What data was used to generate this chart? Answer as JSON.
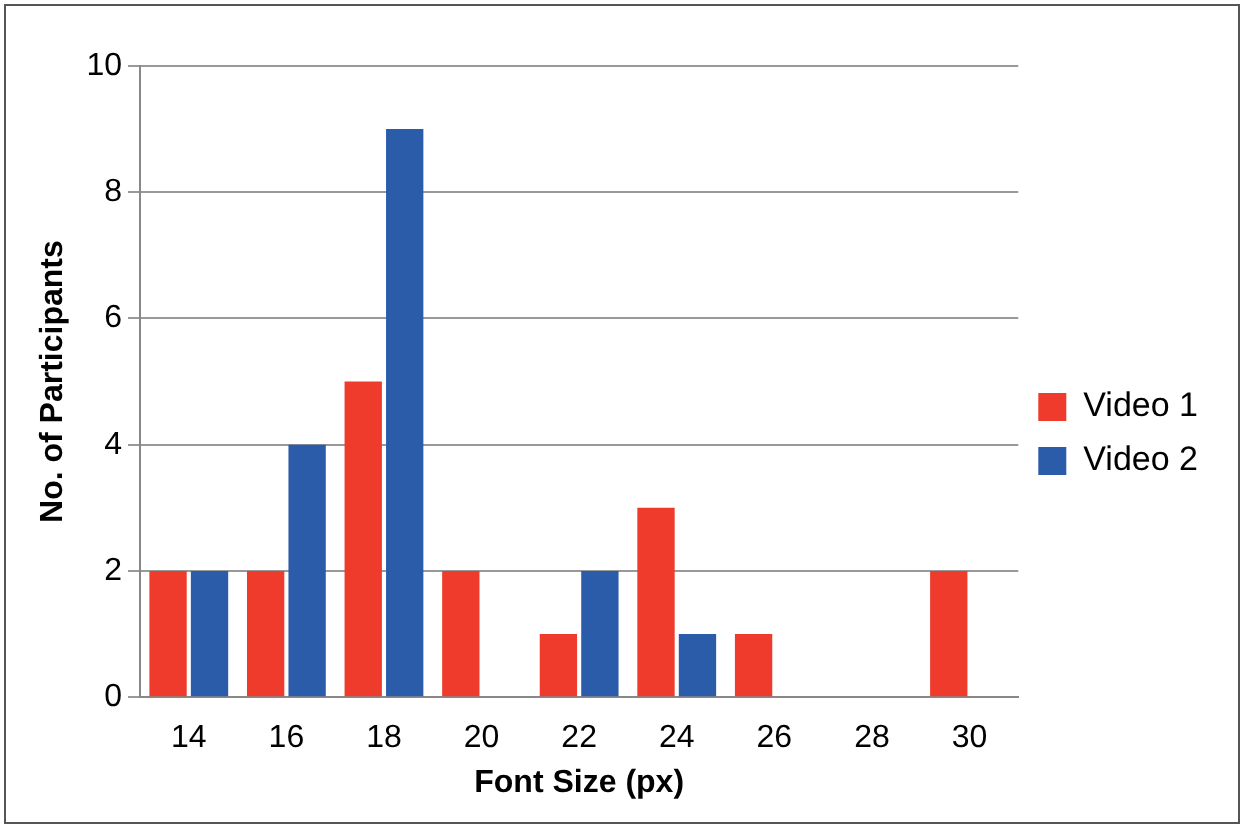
{
  "chart_data": {
    "type": "bar",
    "xlabel": "Font Size (px)",
    "ylabel": "No. of Participants",
    "categories": [
      "14",
      "16",
      "18",
      "20",
      "22",
      "24",
      "26",
      "28",
      "30"
    ],
    "series": [
      {
        "name": "Video 1",
        "color": "#ee3b2b",
        "values": [
          2,
          2,
          5,
          2,
          1,
          3,
          1,
          0,
          2
        ]
      },
      {
        "name": "Video 2",
        "color": "#2a5caa",
        "values": [
          2,
          4,
          9,
          0,
          2,
          1,
          0,
          0,
          0
        ]
      }
    ],
    "ylim": [
      0,
      10
    ],
    "yticks": [
      0,
      2,
      4,
      6,
      8,
      10
    ],
    "grid": "y",
    "legend": "right"
  }
}
